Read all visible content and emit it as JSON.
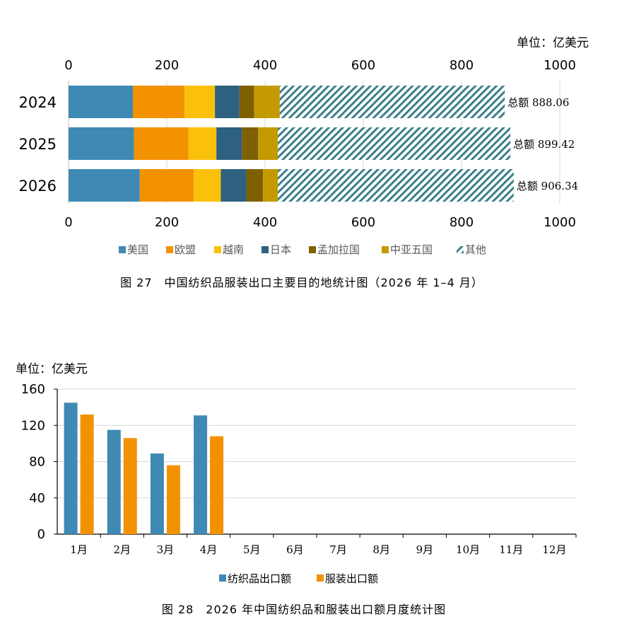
{
  "chart_data": [
    {
      "type": "bar",
      "orientation": "horizontal",
      "stacked": true,
      "unit": "单位：亿美元",
      "categories": [
        "2024",
        "2025",
        "2026"
      ],
      "series": [
        {
          "name": "美国",
          "values": [
            131,
            133,
            145
          ],
          "color": "#3e8ab4"
        },
        {
          "name": "欧盟",
          "values": [
            105,
            111,
            110
          ],
          "color": "#f39200"
        },
        {
          "name": "越南",
          "values": [
            62,
            57,
            55
          ],
          "color": "#fbc10a"
        },
        {
          "name": "日本",
          "values": [
            50,
            52,
            52
          ],
          "color": "#2e617f"
        },
        {
          "name": "孟加拉国",
          "values": [
            30,
            33,
            34
          ],
          "color": "#7f6000"
        },
        {
          "name": "中亚五国",
          "values": [
            52,
            40,
            30
          ],
          "color": "#c39a00"
        },
        {
          "name": "其他",
          "values": [
            458.06,
            473.42,
            480.34
          ],
          "color": "#3b7f8a",
          "pattern": "hatch"
        }
      ],
      "totals": [
        888.06,
        899.42,
        906.34
      ],
      "total_label_prefix": "总额",
      "total_labels": [
        "888.06",
        "899.42",
        "906.34"
      ],
      "xlim": [
        0,
        1000
      ],
      "xticks": [
        "0",
        "200",
        "400",
        "600",
        "800",
        "1000"
      ],
      "legend_position": "bottom",
      "caption": "图 27　中国纺织品服装出口主要目的地统计图（2026 年 1–4 月）"
    },
    {
      "type": "bar",
      "unit": "单位：亿美元",
      "categories": [
        "1月",
        "2月",
        "3月",
        "4月",
        "5月",
        "6月",
        "7月",
        "8月",
        "9月",
        "10月",
        "11月",
        "12月"
      ],
      "series": [
        {
          "name": "纺织品出口额",
          "values": [
            145,
            115,
            89,
            131,
            null,
            null,
            null,
            null,
            null,
            null,
            null,
            null
          ],
          "color": "#3e8ab4"
        },
        {
          "name": "服装出口额",
          "values": [
            132,
            106,
            76,
            108,
            null,
            null,
            null,
            null,
            null,
            null,
            null,
            null
          ],
          "color": "#f39200"
        }
      ],
      "ylim": [
        0,
        160
      ],
      "yticks": [
        "0",
        "40",
        "80",
        "120",
        "160"
      ],
      "grid": true,
      "legend_position": "bottom",
      "caption": "图 28　2026 年中国纺织品和服装出口额月度统计图"
    }
  ]
}
